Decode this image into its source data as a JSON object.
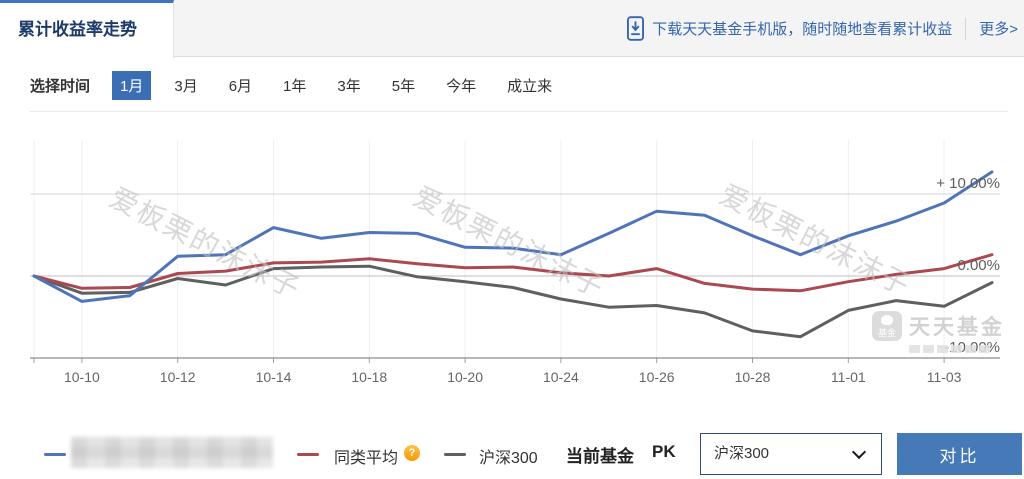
{
  "header": {
    "tab_title": "累计收益率走势",
    "promo_text": "下载天天基金手机版，随时随地查看累计收益",
    "more_text": "更多>"
  },
  "time_selector": {
    "label": "选择时间",
    "options": [
      "1月",
      "3月",
      "6月",
      "1年",
      "3年",
      "5年",
      "今年",
      "成立来"
    ],
    "selected": "1月"
  },
  "chart_data": {
    "type": "line",
    "title": "累计收益率走势",
    "x_tick_labels": [
      "10-10",
      "10-12",
      "10-14",
      "10-18",
      "10-20",
      "10-24",
      "10-26",
      "10-28",
      "11-01",
      "11-03"
    ],
    "x_tick_indices": [
      1,
      3,
      5,
      7,
      9,
      11,
      13,
      15,
      17,
      19
    ],
    "y_unit": "%",
    "ylim": [
      -10.5,
      18
    ],
    "grid": true,
    "legend_position": "bottom",
    "y_gridlines": [
      {
        "label": "+ 10.00%",
        "value": 10
      },
      {
        "label": "0.00%",
        "value": 0
      },
      {
        "label": "-10.00%",
        "value": -10
      }
    ],
    "series": [
      {
        "key": "fund",
        "name": "",
        "label_blurred": true,
        "color": "#4f74b7",
        "values": [
          0,
          -3.1,
          -2.4,
          2.4,
          2.6,
          5.9,
          4.6,
          5.3,
          5.2,
          3.5,
          3.4,
          2.6,
          5.2,
          7.9,
          7.4,
          4.9,
          2.6,
          4.9,
          6.7,
          8.9,
          12.7
        ]
      },
      {
        "key": "category-average",
        "name": "同类平均",
        "color": "#ab4850",
        "values": [
          0,
          -1.5,
          -1.4,
          0.3,
          0.6,
          1.6,
          1.7,
          2.1,
          1.5,
          1.0,
          1.1,
          0.4,
          0.0,
          0.9,
          -0.9,
          -1.6,
          -1.8,
          -0.7,
          0.2,
          0.9,
          2.6
        ]
      },
      {
        "key": "hs300",
        "name": "沪深300",
        "color": "#5f5f5f",
        "values": [
          0,
          -2.1,
          -2.0,
          -0.3,
          -1.1,
          0.9,
          1.1,
          1.2,
          -0.1,
          -0.7,
          -1.4,
          -2.8,
          -3.8,
          -3.6,
          -4.5,
          -6.7,
          -7.4,
          -4.2,
          -3.0,
          -3.7,
          -0.8
        ]
      }
    ]
  },
  "legend": {
    "help_glyph": "?"
  },
  "pk": {
    "label": "当前基金",
    "pk_label": "PK",
    "selected_option": "沪深300",
    "compare_button": "对比"
  },
  "watermarks": {
    "site_text": "爱板栗的沫沫子",
    "brand_text": "天天基金",
    "brand_icon_text": "基金"
  },
  "colors": {
    "accent_blue": "#3c6eb4",
    "link_blue": "#3565ac",
    "button_blue": "#4679b7",
    "fund_line": "#4f74b7",
    "average_line": "#ab4850",
    "index_line": "#5f5f5f"
  }
}
